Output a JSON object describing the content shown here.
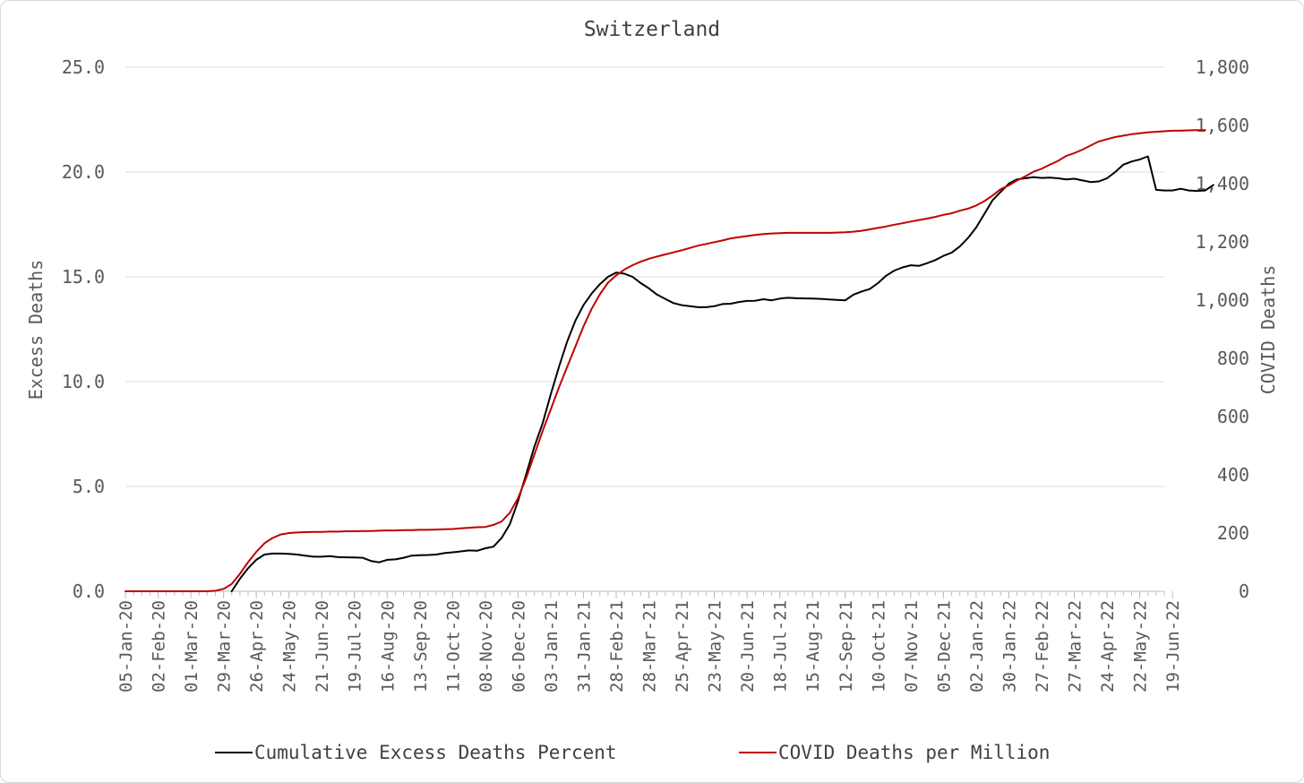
{
  "chart_data": {
    "type": "line",
    "title": "Switzerland",
    "ylabel": "Excess Deaths",
    "y2label": "COVID Deaths",
    "ylim": [
      0,
      25
    ],
    "y2lim": [
      0,
      1800
    ],
    "yticks": [
      "0.0",
      "5.0",
      "10.0",
      "15.0",
      "20.0",
      "25.0"
    ],
    "y2ticks": [
      "0",
      "200",
      "400",
      "600",
      "800",
      "1,000",
      "1,200",
      "1,400",
      "1,600",
      "1,800"
    ],
    "grid": true,
    "legend_position": "bottom",
    "x_labels": [
      "05-Jan-20",
      "02-Feb-20",
      "01-Mar-20",
      "29-Mar-20",
      "26-Apr-20",
      "24-May-20",
      "21-Jun-20",
      "19-Jul-20",
      "16-Aug-20",
      "13-Sep-20",
      "11-Oct-20",
      "08-Nov-20",
      "06-Dec-20",
      "03-Jan-21",
      "31-Jan-21",
      "28-Feb-21",
      "28-Mar-21",
      "25-Apr-21",
      "23-May-21",
      "20-Jun-21",
      "18-Jul-21",
      "15-Aug-21",
      "12-Sep-21",
      "10-Oct-21",
      "07-Nov-21",
      "05-Dec-21",
      "02-Jan-22",
      "30-Jan-22",
      "27-Feb-22",
      "27-Mar-22",
      "24-Apr-22",
      "22-May-22",
      "19-Jun-22"
    ],
    "x_start": "2020-01-05",
    "x_step_days": 7,
    "series": [
      {
        "name": "Cumulative Excess Deaths Percent",
        "axis": "left",
        "color": "#000000",
        "start_week": 13,
        "values": [
          0.0,
          0.6,
          1.1,
          1.5,
          1.75,
          1.8,
          1.8,
          1.78,
          1.75,
          1.7,
          1.65,
          1.65,
          1.68,
          1.63,
          1.62,
          1.61,
          1.6,
          1.45,
          1.38,
          1.5,
          1.52,
          1.6,
          1.7,
          1.72,
          1.73,
          1.75,
          1.82,
          1.86,
          1.9,
          1.95,
          1.93,
          2.05,
          2.13,
          2.55,
          3.2,
          4.3,
          5.6,
          6.9,
          8.0,
          9.4,
          10.7,
          11.9,
          12.9,
          13.65,
          14.2,
          14.65,
          15.0,
          15.2,
          15.15,
          15.0,
          14.7,
          14.45,
          14.15,
          13.95,
          13.75,
          13.65,
          13.6,
          13.55,
          13.55,
          13.6,
          13.7,
          13.72,
          13.8,
          13.85,
          13.86,
          13.93,
          13.88,
          13.96,
          14.0,
          13.98,
          13.97,
          13.96,
          13.95,
          13.92,
          13.9,
          13.88,
          14.15,
          14.3,
          14.42,
          14.7,
          15.05,
          15.3,
          15.45,
          15.55,
          15.52,
          15.65,
          15.8,
          16.0,
          16.15,
          16.45,
          16.85,
          17.35,
          18.0,
          18.65,
          19.05,
          19.45,
          19.65,
          19.7,
          19.75,
          19.72,
          19.73,
          19.7,
          19.65,
          19.68,
          19.6,
          19.52,
          19.55,
          19.7,
          20.0,
          20.35,
          20.5,
          20.6,
          20.75,
          19.15,
          19.12,
          19.12,
          19.2,
          19.12,
          19.1,
          19.12,
          19.38
        ]
      },
      {
        "name": "COVID Deaths per Million",
        "axis": "right",
        "color": "#c00000",
        "start_week": 0,
        "values": [
          0,
          0,
          0,
          0,
          0,
          0,
          0,
          0,
          0,
          0,
          0,
          2,
          8,
          25,
          60,
          100,
          135,
          165,
          183,
          195,
          200,
          202,
          203,
          204,
          204,
          205,
          205,
          206,
          206,
          207,
          207,
          208,
          209,
          209,
          210,
          210,
          211,
          211,
          212,
          213,
          214,
          216,
          218,
          220,
          221,
          228,
          240,
          270,
          320,
          390,
          470,
          550,
          625,
          700,
          770,
          840,
          910,
          970,
          1020,
          1060,
          1085,
          1105,
          1120,
          1132,
          1142,
          1150,
          1157,
          1164,
          1171,
          1179,
          1187,
          1193,
          1199,
          1205,
          1212,
          1216,
          1220,
          1224,
          1227,
          1229,
          1230,
          1231,
          1231,
          1231,
          1231,
          1231,
          1231,
          1232,
          1233,
          1235,
          1238,
          1243,
          1248,
          1253,
          1259,
          1264,
          1270,
          1275,
          1280,
          1286,
          1293,
          1298,
          1307,
          1314,
          1325,
          1340,
          1359,
          1381,
          1394,
          1411,
          1425,
          1441,
          1451,
          1465,
          1478,
          1495,
          1505,
          1517,
          1531,
          1545,
          1553,
          1560,
          1565,
          1570,
          1573,
          1576,
          1578,
          1580,
          1582,
          1582,
          1583,
          1584,
          1584
        ]
      }
    ]
  }
}
